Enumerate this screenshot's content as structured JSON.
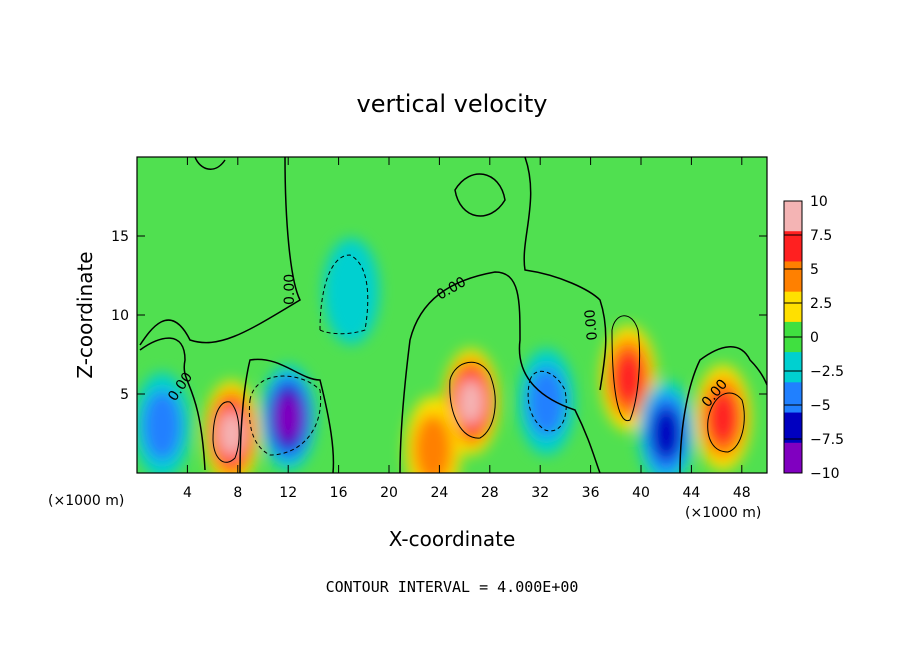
{
  "chart_data": {
    "type": "heatmap",
    "title": "vertical velocity",
    "xlabel": "X-coordinate",
    "ylabel": "Z-coordinate",
    "x_unit": "(×1000 m)",
    "x_unit_right": "(×1000 m)",
    "xlim": [
      0,
      50
    ],
    "ylim": [
      0,
      20
    ],
    "x_ticks": [
      4,
      8,
      12,
      16,
      20,
      24,
      28,
      32,
      36,
      40,
      44,
      48
    ],
    "y_ticks": [
      5,
      10,
      15
    ],
    "contour_interval_text": "CONTOUR INTERVAL = 4.000E+00",
    "contour_labels": [
      "0.00",
      "0.00",
      "0.00",
      "0.00",
      "0.00"
    ],
    "colorbar": {
      "ticks": [
        "10",
        "7.5",
        "5",
        "2.5",
        "0",
        "−2.5",
        "−5",
        "−7.5",
        "−10"
      ],
      "colors": [
        "#f4b4b4",
        "#ff2020",
        "#ff8000",
        "#ffe000",
        "#40e040",
        "#00d0d0",
        "#2080ff",
        "#0000c0",
        "#8000c0"
      ]
    },
    "features": [
      {
        "x": 7.5,
        "z": 2.5,
        "w": 10
      },
      {
        "x": 12,
        "z": 3.5,
        "w": -10
      },
      {
        "x": 17,
        "z": 11.5,
        "w": -3
      },
      {
        "x": 26.5,
        "z": 4.5,
        "w": 10
      },
      {
        "x": 32.5,
        "z": 4.5,
        "w": -5
      },
      {
        "x": 39,
        "z": 6,
        "w": 7.5
      },
      {
        "x": 42,
        "z": 2.5,
        "w": -8
      },
      {
        "x": 46.5,
        "z": 3.5,
        "w": 7
      },
      {
        "x": 2,
        "z": 3,
        "w": -4
      },
      {
        "x": 23.5,
        "z": 1.5,
        "w": 6
      }
    ]
  }
}
